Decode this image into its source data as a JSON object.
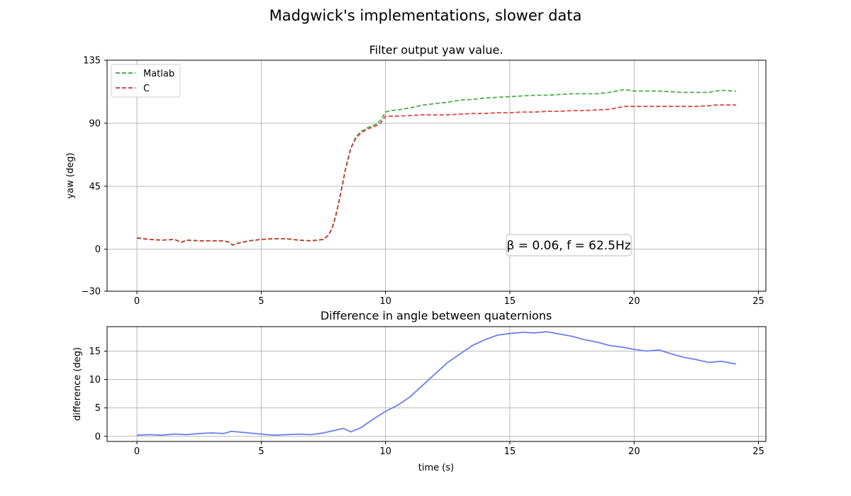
{
  "figure": {
    "suptitle": "Madgwick's implementations, slower data"
  },
  "chart_data": [
    {
      "type": "line",
      "title": "Filter output yaw value.",
      "xlabel": "",
      "ylabel": "yaw (deg)",
      "xlim": [
        -1.2,
        25.3
      ],
      "ylim": [
        -30,
        135
      ],
      "xticks": [
        0,
        5,
        10,
        15,
        20,
        25
      ],
      "yticks": [
        -30,
        0,
        45,
        90,
        135
      ],
      "grid": true,
      "legend": "top-left",
      "annotation": {
        "text": "β = 0.06,  f = 62.5Hz",
        "x": 17.5,
        "y": 3
      },
      "series": [
        {
          "name": "Matlab",
          "color": "#2ca02c",
          "style": "dashed",
          "x": [
            0,
            0.5,
            1,
            1.5,
            1.8,
            2,
            2.5,
            3,
            3.5,
            3.7,
            3.85,
            4,
            4.5,
            5,
            5.5,
            6,
            6.5,
            7,
            7.5,
            7.7,
            7.85,
            8,
            8.2,
            8.4,
            8.6,
            8.8,
            9,
            9.3,
            9.6,
            9.8,
            10,
            10.2,
            10.5,
            11,
            11.5,
            12,
            12.5,
            13,
            13.5,
            14,
            14.5,
            15,
            15.5,
            16,
            16.5,
            17,
            17.5,
            18,
            18.5,
            19,
            19.3,
            19.6,
            20,
            20.5,
            21,
            21.5,
            22,
            22.5,
            23,
            23.3,
            23.5,
            24,
            24.1
          ],
          "y": [
            8,
            7,
            6.5,
            7,
            5,
            6.5,
            6,
            6,
            6,
            5,
            3,
            4,
            6,
            7,
            7.5,
            7.5,
            6.5,
            6,
            7,
            10,
            15,
            24,
            40,
            58,
            72,
            80,
            84,
            87,
            89,
            92,
            98,
            99,
            99.5,
            101,
            103,
            104,
            105,
            106.5,
            107,
            108,
            108.5,
            109,
            109.5,
            110,
            110,
            110.5,
            111,
            111,
            111,
            112,
            113,
            114,
            113,
            113,
            113,
            112.5,
            112,
            112,
            112,
            113,
            113.5,
            113,
            113
          ]
        },
        {
          "name": "C",
          "color": "#d62728",
          "style": "dashed",
          "x": [
            0,
            0.5,
            1,
            1.5,
            1.8,
            2,
            2.5,
            3,
            3.5,
            3.7,
            3.85,
            4,
            4.5,
            5,
            5.5,
            6,
            6.5,
            7,
            7.5,
            7.7,
            7.85,
            8,
            8.2,
            8.4,
            8.6,
            8.8,
            9,
            9.3,
            9.6,
            9.8,
            10,
            10.2,
            10.5,
            11,
            11.5,
            12,
            12.5,
            13,
            13.5,
            14,
            14.5,
            15,
            15.5,
            16,
            16.5,
            17,
            17.5,
            18,
            18.5,
            19,
            19.3,
            19.6,
            20,
            20.5,
            21,
            21.5,
            22,
            22.5,
            23,
            23.3,
            23.5,
            24,
            24.1
          ],
          "y": [
            8,
            7,
            6.5,
            7,
            5,
            6.5,
            6,
            6,
            6,
            5,
            3,
            4,
            6,
            7,
            7.5,
            7.5,
            6.5,
            6,
            7,
            10,
            15,
            24,
            40,
            58,
            72,
            79,
            83,
            86,
            88,
            90,
            95,
            95,
            95,
            95.5,
            96,
            96,
            96,
            96.5,
            97,
            97,
            97.5,
            97.5,
            98,
            98,
            98.5,
            98.5,
            99,
            99,
            99.5,
            100,
            101,
            102,
            102,
            102,
            102,
            102,
            102,
            102,
            102.5,
            103,
            103,
            103,
            103
          ]
        }
      ]
    },
    {
      "type": "line",
      "title": "Difference in angle between quaternions",
      "xlabel": "time (s)",
      "ylabel": "difference (deg)",
      "xlim": [
        -1.2,
        25.3
      ],
      "ylim": [
        -0.9,
        19.3
      ],
      "xticks": [
        0,
        5,
        10,
        15,
        20,
        25
      ],
      "yticks": [
        0,
        5,
        10,
        15
      ],
      "grid": true,
      "series": [
        {
          "color": "#6b7ff0",
          "style": "solid",
          "x": [
            0,
            0.5,
            1,
            1.5,
            2,
            2.5,
            3,
            3.5,
            3.8,
            4,
            4.5,
            5,
            5.5,
            6,
            6.5,
            7,
            7.5,
            8,
            8.3,
            8.6,
            9,
            9.5,
            10,
            10.5,
            11,
            11.5,
            12,
            12.5,
            13,
            13.5,
            14,
            14.5,
            15,
            15.5,
            16,
            16.5,
            17,
            17.5,
            18,
            18.5,
            19,
            19.5,
            20,
            20.5,
            21,
            21.5,
            22,
            22.5,
            23,
            23.5,
            24,
            24.1
          ],
          "y": [
            0.2,
            0.3,
            0.2,
            0.4,
            0.3,
            0.5,
            0.6,
            0.5,
            0.9,
            0.8,
            0.6,
            0.4,
            0.2,
            0.3,
            0.4,
            0.3,
            0.6,
            1.1,
            1.4,
            0.8,
            1.5,
            3,
            4.4,
            5.5,
            7,
            9,
            11,
            13,
            14.5,
            16,
            17,
            17.8,
            18.1,
            18.3,
            18.2,
            18.4,
            18,
            17.6,
            17,
            16.6,
            16,
            15.7,
            15.3,
            15,
            15.2,
            14.5,
            13.9,
            13.5,
            13,
            13.2,
            12.8,
            12.7
          ]
        }
      ]
    }
  ]
}
